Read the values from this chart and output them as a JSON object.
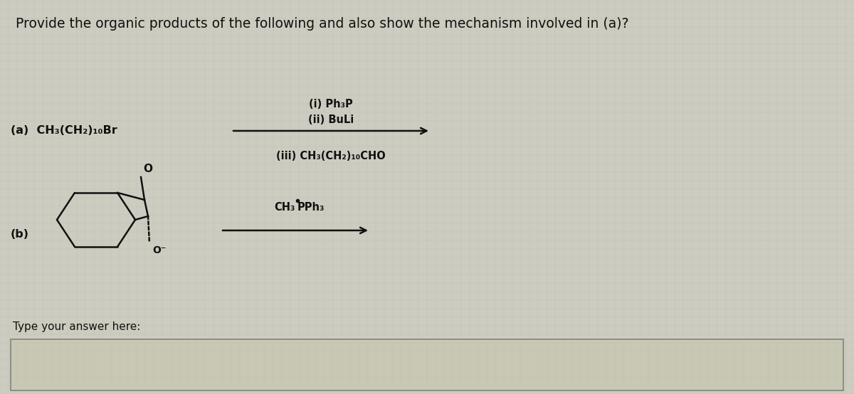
{
  "title": "Provide the organic products of the following and also show the mechanism involved in (a)?",
  "title_fontsize": 13.5,
  "bg_color": "#ccccc0",
  "text_color": "#111111",
  "part_a_label": "(a)  CH₃(CH₂)₁₀Br",
  "part_a_reagent_1": "(i) Ph₃P",
  "part_a_reagent_2": "(ii) BuLi",
  "part_a_reagent_3": "(iii) CH₃(CH₂)₁₀CHO",
  "part_b_label": "(b)",
  "part_b_reagent_left": "CH₃",
  "part_b_reagent_right": "PPh₃",
  "answer_label": "Type your answer here:",
  "arrow_color": "#111111",
  "line_color": "#111111",
  "box_bg": "#c8c8b4",
  "box_border": "#888880"
}
